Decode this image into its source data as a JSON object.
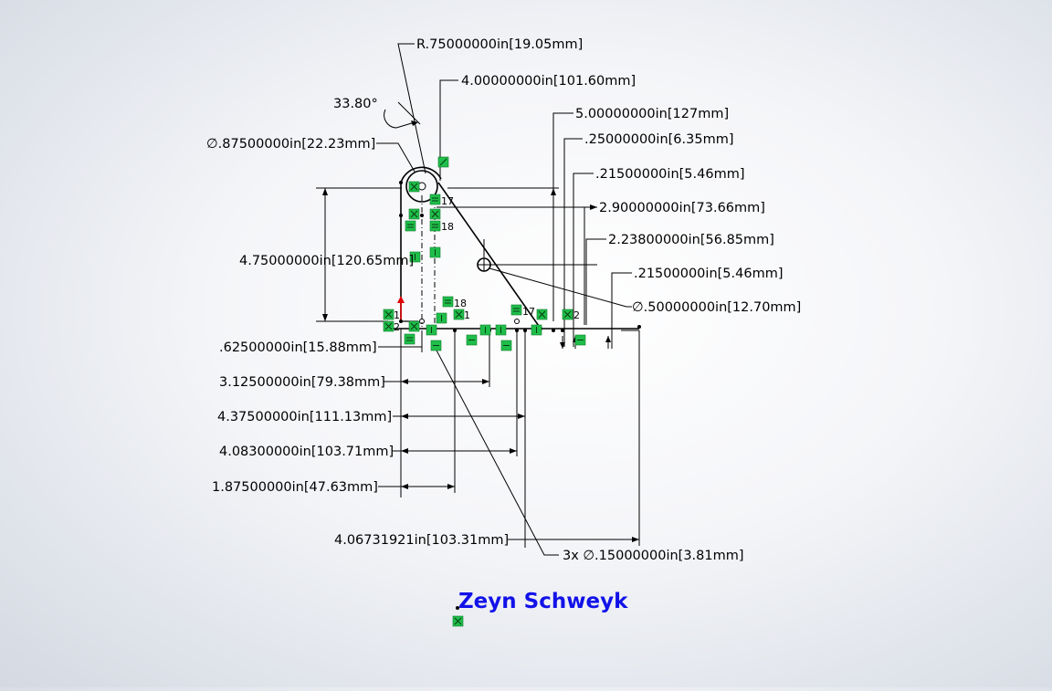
{
  "dimensions": {
    "radius": "R.75000000in[19.05mm]",
    "angle": "33.80°",
    "large_hole_dia": "∅.87500000in[22.23mm]",
    "d_4000": "4.00000000in[101.60mm]",
    "d_5000": "5.00000000in[127mm]",
    "d_0250": ".25000000in[6.35mm]",
    "d_0215_a": ".21500000in[5.46mm]",
    "d_2900": "2.90000000in[73.66mm]",
    "d_2238": "2.23800000in[56.85mm]",
    "d_0215_b": ".21500000in[5.46mm]",
    "d_4750": "4.75000000in[120.65mm]",
    "small_hole_dia": "∅.50000000in[12.70mm]",
    "d_0625": ".62500000in[15.88mm]",
    "d_3125": "3.12500000in[79.38mm]",
    "d_4375": "4.37500000in[111.13mm]",
    "d_4083": "4.08300000in[103.71mm]",
    "d_1875": "1.87500000in[47.63mm]",
    "d_4067": "4.06731921in[103.31mm]",
    "three_holes": "3x ∅.15000000in[3.81mm]"
  },
  "relation_numbers": {
    "n17_a": "17",
    "n18_a": "18",
    "n18_b": "18",
    "n17_b": "17",
    "n1_a": "1",
    "n1_b": "1",
    "n2_a": "2",
    "n2_b": "2"
  },
  "signature": "Zeyn Schweyk",
  "colors": {
    "relation_marker": "#1fbe4a",
    "signature": "#1212e8",
    "origin_arrow": "#e00000"
  }
}
